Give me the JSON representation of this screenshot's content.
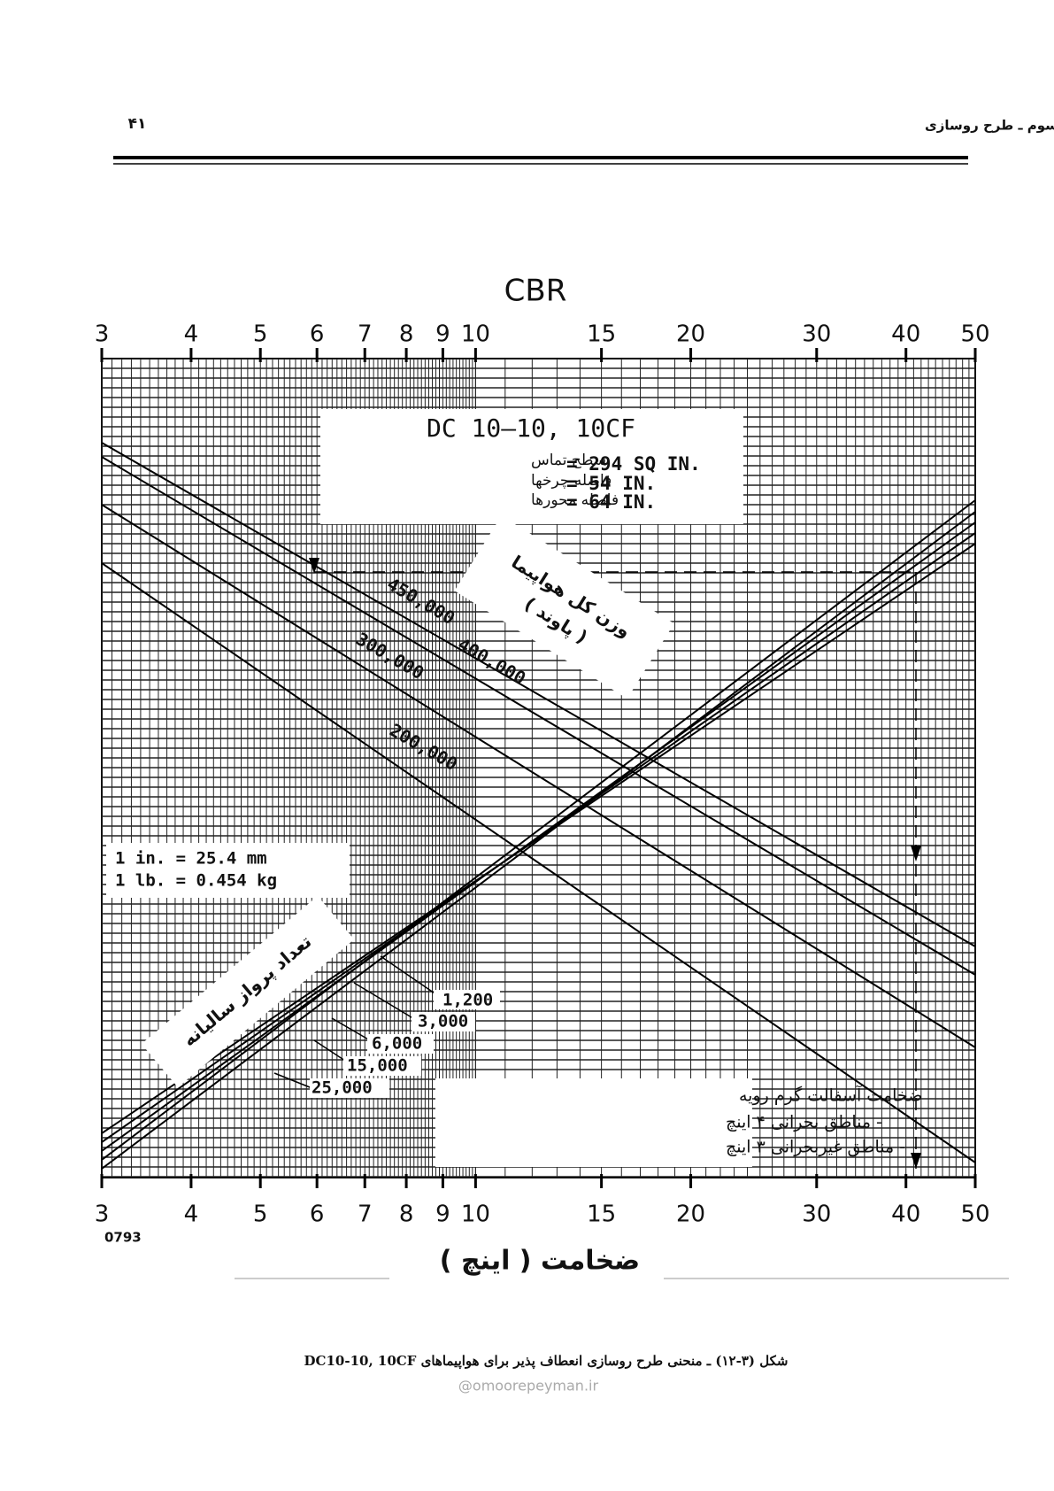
{
  "header": {
    "chapter": "فصل سوم ـ طرح روسازی",
    "page_number": "۴۱"
  },
  "figure": {
    "top_axis_title": "CBR",
    "top_ticks": [
      3,
      4,
      5,
      6,
      7,
      8,
      9,
      10,
      15,
      20,
      30,
      40,
      50
    ],
    "bottom_ticks": [
      3,
      4,
      5,
      6,
      7,
      8,
      9,
      10,
      15,
      20,
      30,
      40,
      50
    ],
    "aircraft_box": {
      "title": "DC 10—10, 10CF",
      "rows": [
        {
          "label": "سطح تماس",
          "value": "= 294 SQ IN."
        },
        {
          "label": "فاصله چرخها",
          "value": "= 54 IN."
        },
        {
          "label": "فاصله محورها",
          "value": "= 64 IN."
        }
      ]
    },
    "weight_label": [
      "وزن کل هواپیما",
      "( پاوند )"
    ],
    "weight_curves": [
      "450,000",
      "400,000",
      "300,000",
      "200,000"
    ],
    "units_box": [
      "1 in. = 25.4 mm",
      "1 lb. = 0.454 kg"
    ],
    "departures_label": "تعداد پرواز سالیانه",
    "departure_curves": [
      "1,200",
      "3,000",
      "6,000",
      "15,000",
      "25,000"
    ],
    "asphalt_box": [
      "ضخامت آسفالت گرم رویه",
      "- مناطق بحرانی ۴ اینچ",
      "- مناطق غیربحرانی ۳ اینچ"
    ],
    "code": "0793",
    "bottom_axis_title": "ضخامت ( اینچ )"
  },
  "caption": "شکل (۳-۱۲) ـ منحنی طرح روسازی انعطاف پذیر برای هواپیماهای DC10-10, 10CF",
  "watermark": "@omoorepeyman.ir"
}
